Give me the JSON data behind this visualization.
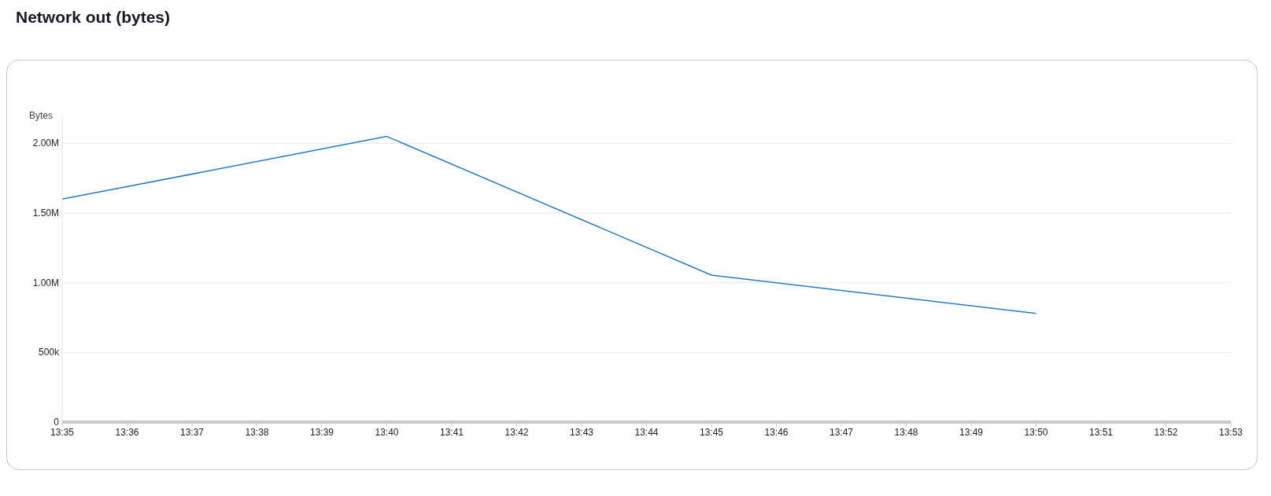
{
  "chart_data": {
    "type": "line",
    "title": "Network out (bytes)",
    "ylabel": "Bytes",
    "x": [
      13.583333,
      13.666667,
      13.75,
      13.833333
    ],
    "series": [
      {
        "color": "#2a7bbd",
        "values": [
          1600000,
          2050000,
          1055000,
          780000
        ]
      }
    ],
    "xlim": [
      13.583333,
      13.883333
    ],
    "xticks": [
      {
        "value": 13.583333,
        "label": "13:35"
      },
      {
        "value": 13.6,
        "label": "13:36"
      },
      {
        "value": 13.616667,
        "label": "13:37"
      },
      {
        "value": 13.633333,
        "label": "13:38"
      },
      {
        "value": 13.65,
        "label": "13:39"
      },
      {
        "value": 13.666667,
        "label": "13:40"
      },
      {
        "value": 13.683333,
        "label": "13:41"
      },
      {
        "value": 13.7,
        "label": "13:42"
      },
      {
        "value": 13.716667,
        "label": "13:43"
      },
      {
        "value": 13.733333,
        "label": "13:44"
      },
      {
        "value": 13.75,
        "label": "13:45"
      },
      {
        "value": 13.766667,
        "label": "13:46"
      },
      {
        "value": 13.783333,
        "label": "13:47"
      },
      {
        "value": 13.8,
        "label": "13:48"
      },
      {
        "value": 13.816667,
        "label": "13:49"
      },
      {
        "value": 13.833333,
        "label": "13:50"
      },
      {
        "value": 13.85,
        "label": "13:51"
      },
      {
        "value": 13.866667,
        "label": "13:52"
      },
      {
        "value": 13.883333,
        "label": "13:53"
      }
    ],
    "ylim": [
      0,
      2200000
    ],
    "yticks": [
      0,
      {
        "value": 500000,
        "label": "500k"
      },
      {
        "value": 1000000,
        "label": "1.00M"
      },
      {
        "value": 1500000,
        "label": "1.50M"
      },
      {
        "value": 2000000,
        "label": "2.00M"
      }
    ],
    "grid": "y",
    "legend": false,
    "marker": "none",
    "line_style": "solid"
  }
}
